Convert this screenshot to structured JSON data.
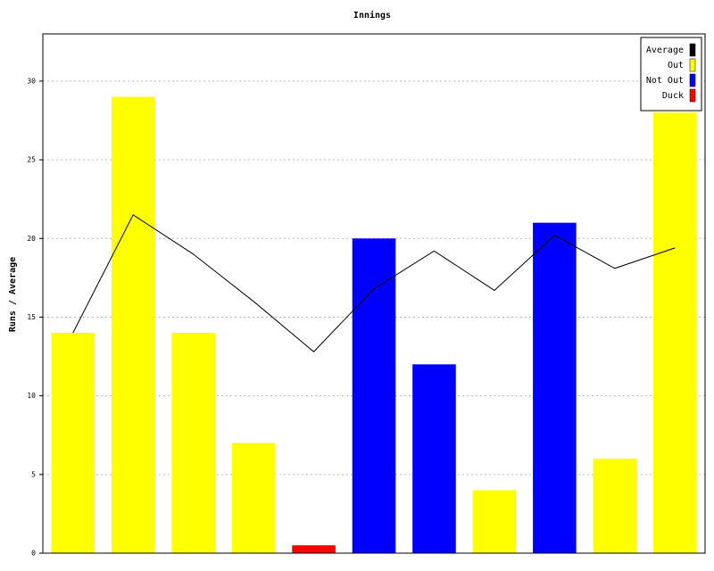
{
  "chart_data": {
    "type": "bar",
    "title": "Innings",
    "y_label": "Runs / Average",
    "categories": [
      null,
      null,
      null,
      null,
      null,
      null,
      null,
      null,
      null,
      null,
      null
    ],
    "series": [
      {
        "name": "Average",
        "color": "#000000",
        "type": "line",
        "values": [
          14,
          21.5,
          19,
          16,
          12.8,
          16.8,
          19.2,
          16.7,
          20.2,
          18.1,
          19.4
        ]
      },
      {
        "name": "Out",
        "color": "#ffff00",
        "values": [
          14,
          29,
          14,
          7,
          null,
          null,
          null,
          4,
          null,
          6,
          28
        ]
      },
      {
        "name": "Not Out",
        "color": "#0000ff",
        "values": [
          null,
          null,
          null,
          null,
          null,
          20,
          12,
          null,
          21,
          null,
          null
        ]
      },
      {
        "name": "Duck",
        "color": "#ff0000",
        "values": [
          null,
          null,
          null,
          null,
          0.5,
          null,
          null,
          null,
          null,
          null,
          null
        ]
      }
    ],
    "ylim": [
      0,
      33
    ],
    "yticks": [
      0,
      5,
      10,
      15,
      20,
      25,
      30
    ],
    "grid": true,
    "legend": "top-right"
  }
}
